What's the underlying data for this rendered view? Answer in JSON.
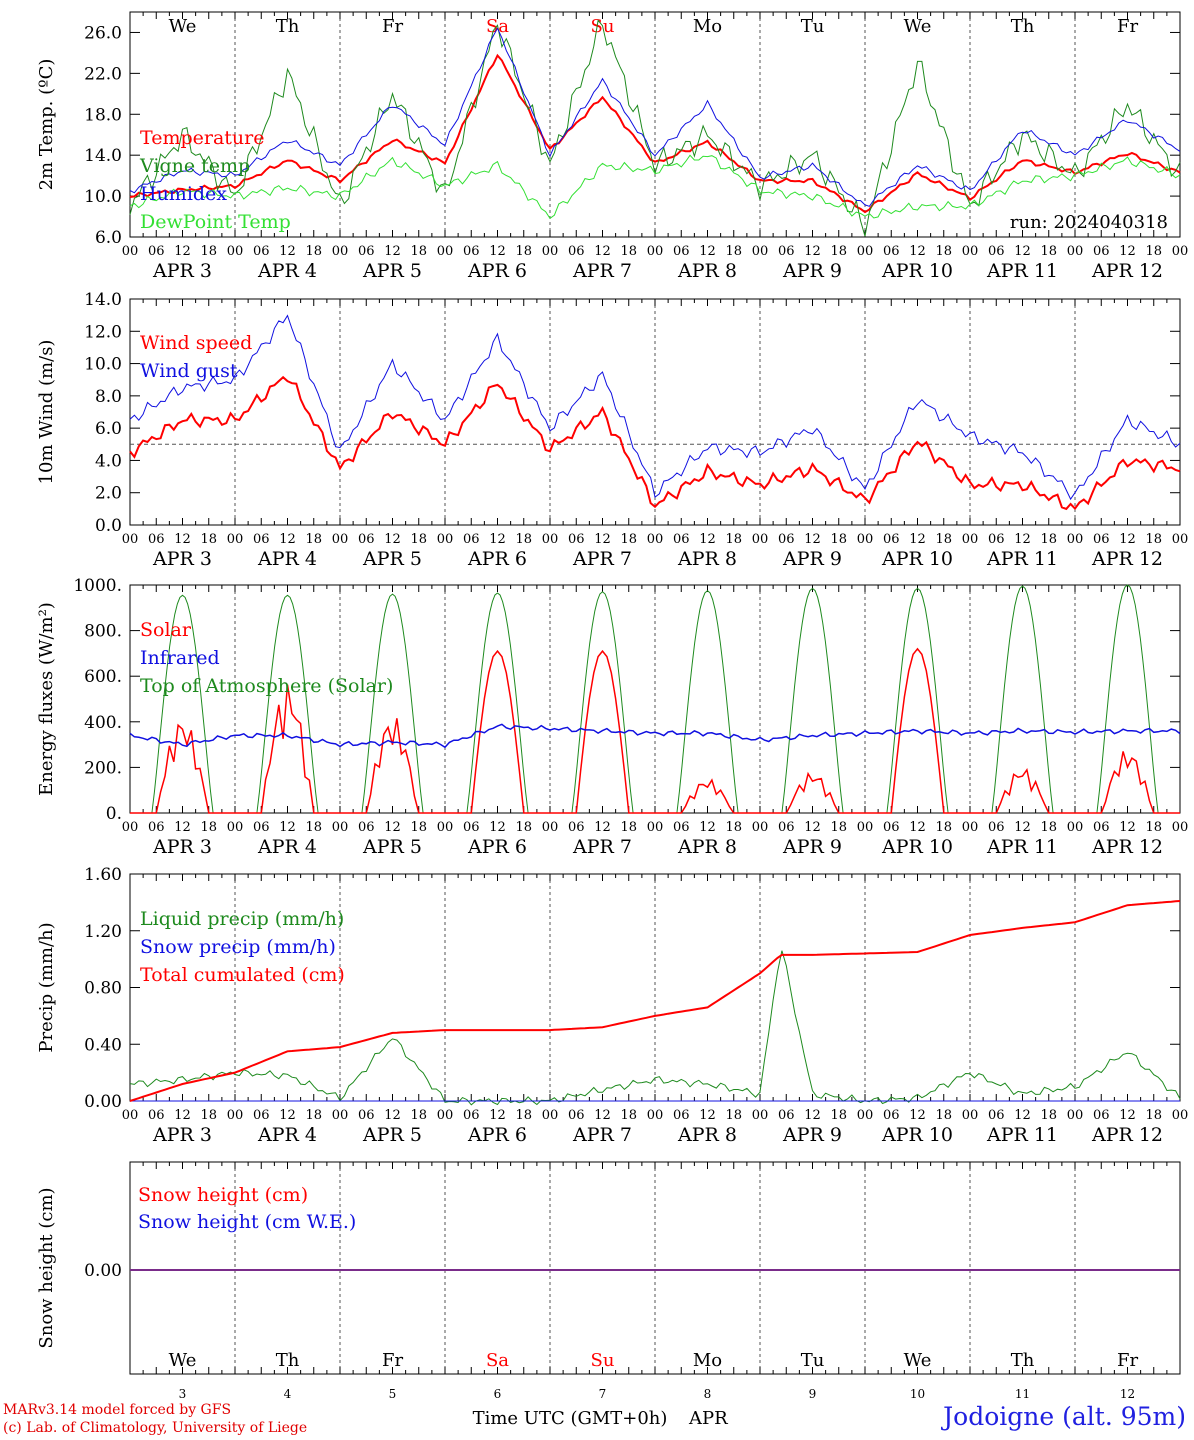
{
  "colors": {
    "red": "#ff0000",
    "green": "#1e8a1e",
    "blue": "#1010e0",
    "lightgreen": "#33e033",
    "purple": "#7a2c8a",
    "black": "#000000"
  },
  "hour_ticks": [
    "00",
    "06",
    "12",
    "18"
  ],
  "day_dates": [
    "APR  3",
    "APR  4",
    "APR  5",
    "APR  6",
    "APR  7",
    "APR  8",
    "APR  9",
    "APR 10",
    "APR 11",
    "APR 12"
  ],
  "day_numbers": [
    "3",
    "4",
    "5",
    "6",
    "7",
    "8",
    "9",
    "10",
    "11",
    "12"
  ],
  "weekdays": [
    "We",
    "Th",
    "Fr",
    "Sa",
    "Su",
    "Mo",
    "Tu",
    "We",
    "Th",
    "Fr"
  ],
  "weekend_indices": [
    3,
    4
  ],
  "footer": {
    "credit_1": "MARv3.14 model forced by GFS",
    "credit_2": "(c) Lab. of Climatology, University of Liege",
    "time_label": "Time UTC (GMT+0h)",
    "month_label": "APR",
    "station": "Jodoigne (alt. 95m)"
  },
  "chart_data": [
    {
      "type": "line",
      "ylabel": "2m Temp. (ºC)",
      "ylim": [
        6,
        28
      ],
      "yticks": [
        "6.0",
        "10.0",
        "14.0",
        "18.0",
        "22.0",
        "26.0"
      ],
      "run_label": "run: 2024040318",
      "legend_placement": "left",
      "x_days": [
        0,
        0.5,
        1,
        1.5,
        2,
        2.5,
        3,
        3.5,
        4,
        4.5,
        5,
        5.5,
        6,
        6.5,
        7,
        7.5,
        8,
        8.5,
        9,
        9.5,
        10
      ],
      "series": [
        {
          "name": "Temperature",
          "color": "red",
          "values": [
            10,
            10.6,
            11,
            13.5,
            11.5,
            15.5,
            13.2,
            23.9,
            14.5,
            19.7,
            13.2,
            15.3,
            11.5,
            11.5,
            8.5,
            12.2,
            9.8,
            13.5,
            12.3,
            14.2,
            12.3
          ]
        },
        {
          "name": "Vigne temp",
          "color": "green",
          "values": [
            9,
            16,
            10,
            22,
            9,
            20,
            10,
            27,
            13,
            27,
            13,
            16,
            11,
            14,
            7,
            23,
            9,
            16,
            12,
            19,
            12
          ]
        },
        {
          "name": "Humidex",
          "color": "blue",
          "values": [
            10.5,
            12.5,
            12,
            15.5,
            13,
            19,
            15,
            26.5,
            14,
            21.3,
            14,
            19,
            11.8,
            13,
            9,
            13,
            10.5,
            16.5,
            14,
            17.5,
            14.5
          ]
        },
        {
          "name": "DewPoint Temp",
          "color": "lightgreen",
          "values": [
            9,
            10.5,
            10,
            10.8,
            10,
            13.5,
            11,
            13,
            8,
            13,
            12.5,
            14,
            10.5,
            10,
            8,
            9,
            9,
            11.5,
            12,
            13.5,
            12
          ]
        }
      ]
    },
    {
      "type": "line",
      "ylabel": "10m Wind (m/s)",
      "ylim": [
        0,
        14
      ],
      "yticks": [
        "0.0",
        "2.0",
        "4.0",
        "6.0",
        "8.0",
        "10.0",
        "12.0",
        "14.0"
      ],
      "reference_line": 5,
      "legend_placement": "left",
      "x_days": [
        0,
        0.5,
        1,
        1.5,
        2,
        2.5,
        3,
        3.5,
        4,
        4.5,
        5,
        5.5,
        6,
        6.5,
        7,
        7.5,
        8,
        8.5,
        9,
        9.5,
        10
      ],
      "series": [
        {
          "name": "Wind speed",
          "color": "red",
          "values": [
            4.5,
            6.5,
            6.5,
            9.3,
            3.5,
            7,
            5,
            8.8,
            4.7,
            7,
            1.2,
            3.3,
            2.5,
            3.5,
            1.5,
            5.2,
            2.5,
            2.5,
            1,
            4,
            3.5
          ]
        },
        {
          "name": "Wind gust",
          "color": "blue",
          "values": [
            6.5,
            8.5,
            9,
            13,
            4.5,
            10,
            6.5,
            11.5,
            6,
            9.3,
            2,
            4.8,
            4.5,
            6,
            2.2,
            7.8,
            5.5,
            4.5,
            1.8,
            6.5,
            5
          ]
        }
      ]
    },
    {
      "type": "line",
      "ylabel": "Energy fluxes (W/m²)",
      "ylim": [
        0,
        1000
      ],
      "yticks": [
        "0.",
        "200.",
        "400.",
        "600.",
        "800.",
        "1000."
      ],
      "legend_placement": "left",
      "series": [
        {
          "name": "Solar",
          "color": "red",
          "daily_peak": [
            420,
            570,
            430,
            710,
            710,
            150,
            180,
            720,
            200,
            280
          ]
        },
        {
          "name": "Infrared",
          "color": "blue",
          "values": [
            340,
            300,
            340,
            340,
            300,
            310,
            300,
            380,
            370,
            360,
            350,
            350,
            320,
            340,
            350,
            360,
            350,
            360,
            355,
            360,
            360
          ]
        },
        {
          "name": "Top of Atmosphere (Solar)",
          "color": "green",
          "daily_peak": [
            955,
            955,
            960,
            965,
            970,
            975,
            985,
            985,
            995,
            1000
          ]
        }
      ]
    },
    {
      "type": "line",
      "ylabel": "Precip (mm/h)",
      "ylim": [
        0,
        1.6
      ],
      "yticks": [
        "0.00",
        "0.40",
        "0.80",
        "1.20",
        "1.60"
      ],
      "legend_placement": "left",
      "x_days": [
        0,
        0.5,
        1,
        1.5,
        2,
        2.5,
        3,
        3.5,
        4,
        4.5,
        5,
        5.5,
        6,
        6.2,
        6.5,
        7,
        7.5,
        8,
        8.5,
        9,
        9.5,
        10
      ],
      "series": [
        {
          "name": "Liquid precip (mm/h)",
          "color": "green",
          "values": [
            0.12,
            0.15,
            0.2,
            0.18,
            0.02,
            0.45,
            0,
            0,
            0,
            0.08,
            0.15,
            0.12,
            0.05,
            1.1,
            0.05,
            0,
            0.02,
            0.2,
            0.05,
            0.1,
            0.35,
            0.02
          ]
        },
        {
          "name": "Snow precip (mm/h)",
          "color": "blue",
          "values": [
            0,
            0,
            0,
            0,
            0,
            0,
            0,
            0,
            0,
            0,
            0,
            0,
            0,
            0,
            0,
            0,
            0,
            0,
            0,
            0,
            0,
            0
          ]
        },
        {
          "name": "Total cumulated (cm)",
          "color": "red",
          "values": [
            0,
            0.12,
            0.2,
            0.35,
            0.38,
            0.48,
            0.5,
            0.5,
            0.5,
            0.52,
            0.6,
            0.66,
            0.9,
            1.03,
            1.03,
            1.04,
            1.05,
            1.17,
            1.22,
            1.26,
            1.38,
            1.41
          ]
        }
      ]
    },
    {
      "type": "line",
      "ylabel": "Snow height (cm)",
      "yticks": [
        "0.00"
      ],
      "legend_placement": "left",
      "series": [
        {
          "name": "Snow height (cm)",
          "color": "red",
          "values": [
            0,
            0
          ]
        },
        {
          "name": "Snow height (cm W.E.)",
          "color": "blue",
          "values": [
            0,
            0
          ]
        }
      ]
    }
  ]
}
